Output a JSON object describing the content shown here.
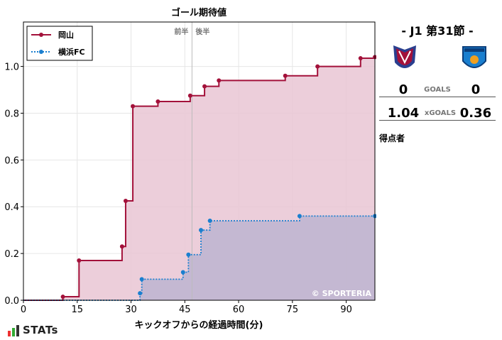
{
  "chart_data": {
    "type": "line",
    "step": true,
    "title": "ゴール期待値",
    "xlabel": "キックオフからの経過時間(分)",
    "ylabel": "",
    "xlim": [
      0,
      98
    ],
    "ylim": [
      0,
      1.19
    ],
    "xticks": [
      0,
      15,
      30,
      45,
      60,
      75,
      90
    ],
    "yticks": [
      0.0,
      0.2,
      0.4,
      0.6,
      0.8,
      1.0
    ],
    "grid": true,
    "legend_position": "top-left",
    "halftime_x": 47,
    "halftime_labels": [
      "前半",
      "後半"
    ],
    "watermark": "© SPORTERIA",
    "series": [
      {
        "name": "岡山",
        "color": "#a3113a",
        "fill": "#e9c6d3",
        "linestyle": "solid",
        "x": [
          11,
          15.5,
          27.5,
          28.5,
          30.5,
          37.5,
          46.5,
          50.5,
          54.5,
          73,
          82,
          94,
          98
        ],
        "y": [
          0.015,
          0.17,
          0.23,
          0.425,
          0.83,
          0.85,
          0.875,
          0.915,
          0.94,
          0.96,
          1.0,
          1.035,
          1.04
        ]
      },
      {
        "name": "横浜FC",
        "color": "#1a7fcf",
        "fill": "#c0b6d0",
        "linestyle": "dotted",
        "x": [
          32.5,
          33,
          44.5,
          46,
          49.5,
          52,
          77,
          98
        ],
        "y": [
          0.03,
          0.09,
          0.12,
          0.195,
          0.3,
          0.34,
          0.36,
          0.36
        ]
      }
    ]
  },
  "side": {
    "matchday": "- J1 第31節 -",
    "home_score": "0",
    "away_score": "0",
    "goals_label": "GOALS",
    "home_xg": "1.04",
    "away_xg": "0.36",
    "xg_label": "xGOALS",
    "scorers_label": "得点者",
    "home_colors": [
      "#a3113a",
      "#2a3f8f"
    ],
    "away_colors": [
      "#1a7fcf",
      "#0b3d7a"
    ]
  },
  "brand": {
    "name": "STATs",
    "colors": [
      "#e33",
      "#3a3",
      "#333"
    ]
  }
}
